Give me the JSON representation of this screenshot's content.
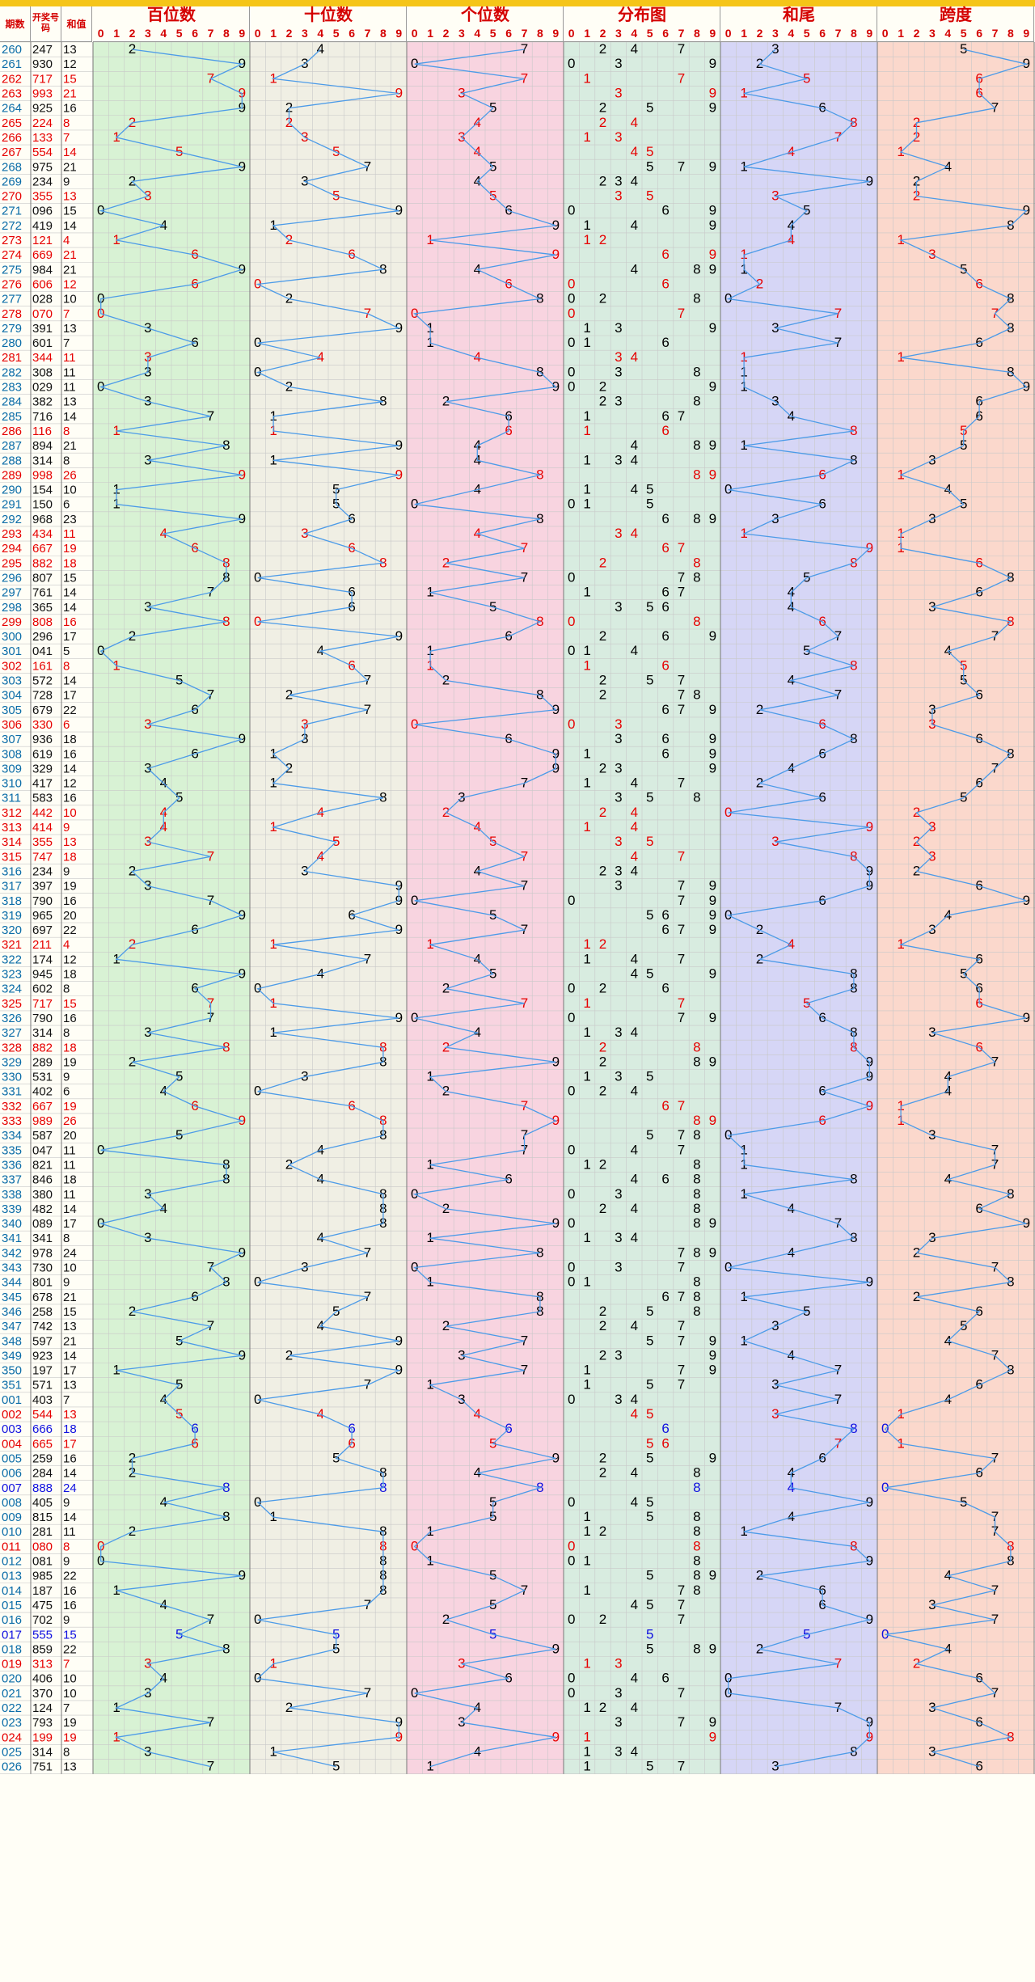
{
  "header": {
    "period": "期数",
    "draw": "开奖号码",
    "sum": "和值",
    "sections": [
      "百位数",
      "十位数",
      "个位数",
      "分布图",
      "和尾",
      "跨度"
    ],
    "digits": [
      "0",
      "1",
      "2",
      "3",
      "4",
      "5",
      "6",
      "7",
      "8",
      "9"
    ]
  },
  "colors": {
    "accent_red": "#e60000",
    "blue": "#1010e0",
    "line": "#4c9be8",
    "section_bg": [
      "#d8f2d4",
      "#f0efe4",
      "#f8d4e0",
      "#d8ece0",
      "#d6d6f6",
      "#fbd8cc"
    ]
  },
  "chart_data": {
    "type": "table",
    "columns": [
      "期数",
      "开奖号码",
      "和值",
      "百位数",
      "十位数",
      "个位数",
      "分布图",
      "和尾",
      "跨度"
    ],
    "rows": [
      [
        "260",
        "247",
        "13"
      ],
      [
        "261",
        "930",
        "12"
      ],
      [
        "262",
        "717",
        "15"
      ],
      [
        "263",
        "993",
        "21"
      ],
      [
        "264",
        "925",
        "16"
      ],
      [
        "265",
        "224",
        "8"
      ],
      [
        "266",
        "133",
        "7"
      ],
      [
        "267",
        "554",
        "14"
      ],
      [
        "268",
        "975",
        "21"
      ],
      [
        "269",
        "234",
        "9"
      ],
      [
        "270",
        "355",
        "13"
      ],
      [
        "271",
        "096",
        "15"
      ],
      [
        "272",
        "419",
        "14"
      ],
      [
        "273",
        "121",
        "4"
      ],
      [
        "274",
        "669",
        "21"
      ],
      [
        "275",
        "984",
        "21"
      ],
      [
        "276",
        "606",
        "12"
      ],
      [
        "277",
        "028",
        "10"
      ],
      [
        "278",
        "070",
        "7"
      ],
      [
        "279",
        "391",
        "13"
      ],
      [
        "280",
        "601",
        "7"
      ],
      [
        "281",
        "344",
        "11"
      ],
      [
        "282",
        "308",
        "11"
      ],
      [
        "283",
        "029",
        "11"
      ],
      [
        "284",
        "382",
        "13"
      ],
      [
        "285",
        "716",
        "14"
      ],
      [
        "286",
        "116",
        "8"
      ],
      [
        "287",
        "894",
        "21"
      ],
      [
        "288",
        "314",
        "8"
      ],
      [
        "289",
        "998",
        "26"
      ],
      [
        "290",
        "154",
        "10"
      ],
      [
        "291",
        "150",
        "6"
      ],
      [
        "292",
        "968",
        "23"
      ],
      [
        "293",
        "434",
        "11"
      ],
      [
        "294",
        "667",
        "19"
      ],
      [
        "295",
        "882",
        "18"
      ],
      [
        "296",
        "807",
        "15"
      ],
      [
        "297",
        "761",
        "14"
      ],
      [
        "298",
        "365",
        "14"
      ],
      [
        "299",
        "808",
        "16"
      ],
      [
        "300",
        "296",
        "17"
      ],
      [
        "301",
        "041",
        "5"
      ],
      [
        "302",
        "161",
        "8"
      ],
      [
        "303",
        "572",
        "14"
      ],
      [
        "304",
        "728",
        "17"
      ],
      [
        "305",
        "679",
        "22"
      ],
      [
        "306",
        "330",
        "6"
      ],
      [
        "307",
        "936",
        "18"
      ],
      [
        "308",
        "619",
        "16"
      ],
      [
        "309",
        "329",
        "14"
      ],
      [
        "310",
        "417",
        "12"
      ],
      [
        "311",
        "583",
        "16"
      ],
      [
        "312",
        "442",
        "10"
      ],
      [
        "313",
        "414",
        "9"
      ],
      [
        "314",
        "355",
        "13"
      ],
      [
        "315",
        "747",
        "18"
      ],
      [
        "316",
        "234",
        "9"
      ],
      [
        "317",
        "397",
        "19"
      ],
      [
        "318",
        "790",
        "16"
      ],
      [
        "319",
        "965",
        "20"
      ],
      [
        "320",
        "697",
        "22"
      ],
      [
        "321",
        "211",
        "4"
      ],
      [
        "322",
        "174",
        "12"
      ],
      [
        "323",
        "945",
        "18"
      ],
      [
        "324",
        "602",
        "8"
      ],
      [
        "325",
        "717",
        "15"
      ],
      [
        "326",
        "790",
        "16"
      ],
      [
        "327",
        "314",
        "8"
      ],
      [
        "328",
        "882",
        "18"
      ],
      [
        "329",
        "289",
        "19"
      ],
      [
        "330",
        "531",
        "9"
      ],
      [
        "331",
        "402",
        "6"
      ],
      [
        "332",
        "667",
        "19"
      ],
      [
        "333",
        "989",
        "26"
      ],
      [
        "334",
        "587",
        "20"
      ],
      [
        "335",
        "047",
        "11"
      ],
      [
        "336",
        "821",
        "11"
      ],
      [
        "337",
        "846",
        "18"
      ],
      [
        "338",
        "380",
        "11"
      ],
      [
        "339",
        "482",
        "14"
      ],
      [
        "340",
        "089",
        "17"
      ],
      [
        "341",
        "341",
        "8"
      ],
      [
        "342",
        "978",
        "24"
      ],
      [
        "343",
        "730",
        "10"
      ],
      [
        "344",
        "801",
        "9"
      ],
      [
        "345",
        "678",
        "21"
      ],
      [
        "346",
        "258",
        "15"
      ],
      [
        "347",
        "742",
        "13"
      ],
      [
        "348",
        "597",
        "21"
      ],
      [
        "349",
        "923",
        "14"
      ],
      [
        "350",
        "197",
        "17"
      ],
      [
        "351",
        "571",
        "13"
      ],
      [
        "001",
        "403",
        "7"
      ],
      [
        "002",
        "544",
        "13"
      ],
      [
        "003",
        "666",
        "18"
      ],
      [
        "004",
        "665",
        "17"
      ],
      [
        "005",
        "259",
        "16"
      ],
      [
        "006",
        "284",
        "14"
      ],
      [
        "007",
        "888",
        "24"
      ],
      [
        "008",
        "405",
        "9"
      ],
      [
        "009",
        "815",
        "14"
      ],
      [
        "010",
        "281",
        "11"
      ],
      [
        "011",
        "080",
        "8"
      ],
      [
        "012",
        "081",
        "9"
      ],
      [
        "013",
        "985",
        "22"
      ],
      [
        "014",
        "187",
        "16"
      ],
      [
        "015",
        "475",
        "16"
      ],
      [
        "016",
        "702",
        "9"
      ],
      [
        "017",
        "555",
        "15"
      ],
      [
        "018",
        "859",
        "22"
      ],
      [
        "019",
        "313",
        "7"
      ],
      [
        "020",
        "406",
        "10"
      ],
      [
        "021",
        "370",
        "10"
      ],
      [
        "022",
        "124",
        "7"
      ],
      [
        "023",
        "793",
        "19"
      ],
      [
        "024",
        "199",
        "19"
      ],
      [
        "025",
        "314",
        "8"
      ],
      [
        "026",
        "751",
        "13"
      ]
    ]
  }
}
